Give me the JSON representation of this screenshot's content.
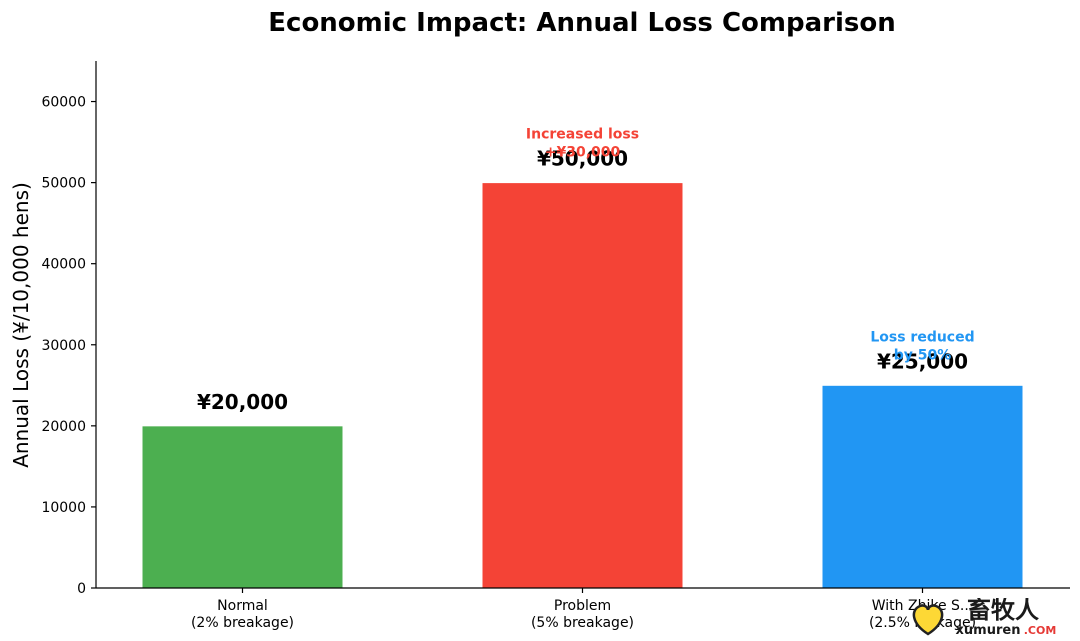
{
  "chart_data": {
    "type": "bar",
    "title": "Economic Impact: Annual Loss Comparison",
    "xlabel": "",
    "ylabel": "Annual Loss (¥/10,000 hens)",
    "ylim": [
      0,
      65000
    ],
    "yticks": [
      "0",
      "10000",
      "20000",
      "30000",
      "40000",
      "50000",
      "60000"
    ],
    "ytick_values": [
      0,
      10000,
      20000,
      30000,
      40000,
      50000,
      60000
    ],
    "categories": [
      "Normal\n(2% breakage)",
      "Problem\n(5% breakage)",
      "With Zhike S...\n(2.5% b...kage)"
    ],
    "values": [
      20000,
      50000,
      25000
    ],
    "value_labels": [
      "¥20,000",
      "¥50,000",
      "¥25,000"
    ],
    "colors": [
      "#4caf50",
      "#f44336",
      "#2196f3"
    ],
    "annotations": [
      {
        "bar": 1,
        "text": "Increased loss\n+¥30,000",
        "color": "#f44336"
      },
      {
        "bar": 2,
        "text": "Loss reduced\nby 50%",
        "color": "#2196f3"
      }
    ],
    "grid": false,
    "legend": "none"
  },
  "watermark": {
    "brand_cn": "畜牧人",
    "brand_en": "xumuren",
    "brand_domain": ".COM"
  }
}
